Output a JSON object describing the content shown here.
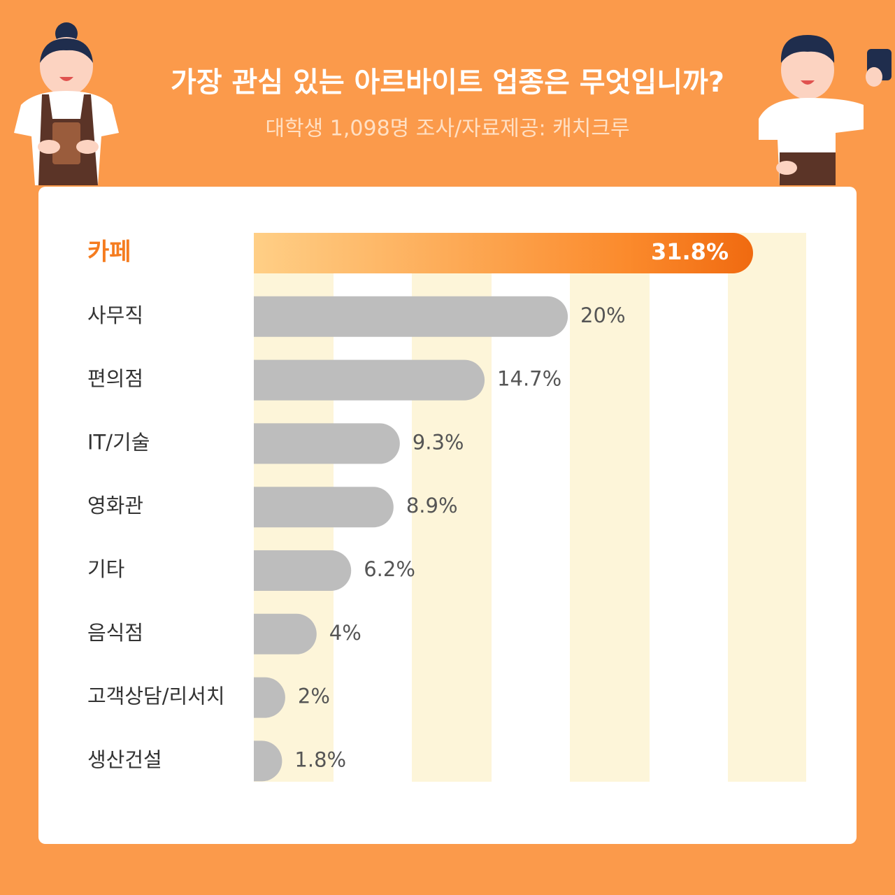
{
  "chart_data": {
    "type": "bar",
    "orientation": "horizontal",
    "title": "가장 관심 있는 아르바이트 업종은 무엇입니까?",
    "subtitle": "대학생 1,098명 조사/자료제공: 캐치크루",
    "categories": [
      "카페",
      "사무직",
      "편의점",
      "IT/기술",
      "영화관",
      "기타",
      "음식점",
      "고객상담/리서치",
      "생산건설"
    ],
    "values": [
      31.8,
      20,
      14.7,
      9.3,
      8.9,
      6.2,
      4,
      2,
      1.8
    ],
    "value_labels": [
      "31.8%",
      "20%",
      "14.7%",
      "9.3%",
      "8.9%",
      "6.2%",
      "4%",
      "2%",
      "1.8%"
    ],
    "color": "#bdbdbd",
    "highlight_color": "#f57c1f"
  }
}
